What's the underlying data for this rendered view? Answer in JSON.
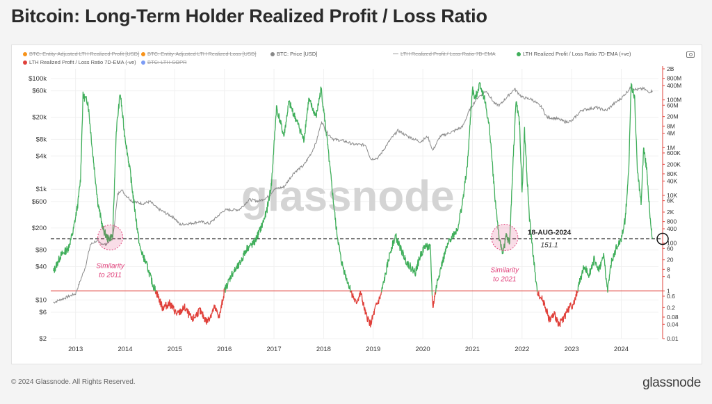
{
  "title": "Bitcoin: Long-Term Holder Realized Profit / Loss Ratio",
  "legend": [
    {
      "label": "BTC: Entity-Adjusted LTH Realized Profit [USD]",
      "color": "#f7931a",
      "struck": true
    },
    {
      "label": "BTC: Entity-Adjusted LTH Realized Loss [USD]",
      "color": "#f7931a",
      "struck": true
    },
    {
      "label": "BTC: Price [USD]",
      "color": "#888888",
      "struck": false
    },
    {
      "label": "LTH Realized Profit / Loss Ratio 7D-EMA",
      "color": "#999999",
      "struck": true
    },
    {
      "label": "LTH Realized Profit / Loss Ratio 7D-EMA (+ve)",
      "color": "#3fae5a",
      "struck": false
    },
    {
      "label": "LTH Realized Profit / Loss Ratio 7D-EMA (-ve)",
      "color": "#e0403a",
      "struck": false
    },
    {
      "label": "BTC: LTH-SOPR",
      "color": "#7c9cf5",
      "struck": true
    }
  ],
  "watermark": "glassnode",
  "annotations": {
    "sim2011": "Similarity\nto 2011",
    "sim2021": "Similarity\nto 2021",
    "date": "18-AUG-2024",
    "value": "151.1"
  },
  "colors": {
    "price": "#8a8a8a",
    "positive": "#3fae5a",
    "negative": "#e0403a",
    "accent": "#e0407a"
  },
  "footer": {
    "copyright": "© 2024 Glassnode. All Rights Reserved.",
    "brand": "glassnode"
  },
  "chart_data": {
    "type": "line",
    "title": "Bitcoin: Long-Term Holder Realized Profit / Loss Ratio",
    "x_ticks": [
      "2013",
      "2014",
      "2015",
      "2016",
      "2017",
      "2018",
      "2019",
      "2020",
      "2021",
      "2022",
      "2023",
      "2024"
    ],
    "y_left_ticks": [
      "$100k",
      "$60k",
      "$20k",
      "$8k",
      "$4k",
      "$1k",
      "$600",
      "$200",
      "$80",
      "$40",
      "$10",
      "$6",
      "$2"
    ],
    "y_left_values": [
      100000,
      60000,
      20000,
      8000,
      4000,
      1000,
      600,
      200,
      80,
      40,
      10,
      6,
      2
    ],
    "y_left_range": [
      2,
      150000
    ],
    "y_right_ticks": [
      "2B",
      "800M",
      "400M",
      "100M",
      "60M",
      "20M",
      "8M",
      "4M",
      "1M",
      "600K",
      "200K",
      "80K",
      "40K",
      "10K",
      "6K",
      "2K",
      "800",
      "400",
      "100",
      "60",
      "20",
      "8",
      "4",
      "1",
      "0.6",
      "0.2",
      "0.08",
      "0.04",
      "0.01"
    ],
    "y_right_values": [
      2000000000,
      800000000,
      400000000,
      100000000,
      60000000,
      20000000,
      8000000,
      4000000,
      1000000,
      600000,
      200000,
      80000,
      40000,
      10000,
      6000,
      2000,
      800,
      400,
      100,
      60,
      20,
      8,
      4,
      1,
      0.6,
      0.2,
      0.08,
      0.04,
      0.01
    ],
    "y_right_range": [
      0.01,
      2000000000
    ],
    "reference_lines": [
      {
        "name": "ratio-1-baseline",
        "value": 1,
        "axis": "right",
        "color": "#e0403a"
      },
      {
        "name": "aug-2024-level",
        "value": 151.1,
        "axis": "right",
        "style": "dashed"
      }
    ],
    "series": [
      {
        "name": "BTC: Price [USD]",
        "axis": "left",
        "color": "#8a8a8a",
        "points": [
          [
            2012.55,
            9
          ],
          [
            2012.8,
            11
          ],
          [
            2013.0,
            13
          ],
          [
            2013.2,
            40
          ],
          [
            2013.3,
            100
          ],
          [
            2013.4,
            115
          ],
          [
            2013.6,
            100
          ],
          [
            2013.75,
            130
          ],
          [
            2013.85,
            800
          ],
          [
            2013.92,
            1000
          ],
          [
            2014.0,
            800
          ],
          [
            2014.15,
            600
          ],
          [
            2014.35,
            550
          ],
          [
            2014.5,
            600
          ],
          [
            2014.65,
            450
          ],
          [
            2014.8,
            380
          ],
          [
            2015.0,
            300
          ],
          [
            2015.1,
            230
          ],
          [
            2015.3,
            240
          ],
          [
            2015.5,
            260
          ],
          [
            2015.7,
            240
          ],
          [
            2015.9,
            350
          ],
          [
            2016.0,
            420
          ],
          [
            2016.3,
            430
          ],
          [
            2016.5,
            650
          ],
          [
            2016.7,
            610
          ],
          [
            2016.9,
            750
          ],
          [
            2017.0,
            1000
          ],
          [
            2017.2,
            1100
          ],
          [
            2017.4,
            2000
          ],
          [
            2017.6,
            2700
          ],
          [
            2017.75,
            4500
          ],
          [
            2017.85,
            7000
          ],
          [
            2017.96,
            17000
          ],
          [
            2018.05,
            11000
          ],
          [
            2018.2,
            8000
          ],
          [
            2018.4,
            7500
          ],
          [
            2018.6,
            6500
          ],
          [
            2018.85,
            6300
          ],
          [
            2018.95,
            3500
          ],
          [
            2019.1,
            3700
          ],
          [
            2019.35,
            8000
          ],
          [
            2019.5,
            11500
          ],
          [
            2019.7,
            9000
          ],
          [
            2019.95,
            7200
          ],
          [
            2020.1,
            9000
          ],
          [
            2020.2,
            5000
          ],
          [
            2020.35,
            9000
          ],
          [
            2020.6,
            11000
          ],
          [
            2020.8,
            13500
          ],
          [
            2020.95,
            28000
          ],
          [
            2021.1,
            45000
          ],
          [
            2021.28,
            60000
          ],
          [
            2021.45,
            35000
          ],
          [
            2021.55,
            33000
          ],
          [
            2021.7,
            47000
          ],
          [
            2021.85,
            65000
          ],
          [
            2022.0,
            46000
          ],
          [
            2022.2,
            42000
          ],
          [
            2022.4,
            30000
          ],
          [
            2022.5,
            20000
          ],
          [
            2022.7,
            19000
          ],
          [
            2022.87,
            16500
          ],
          [
            2023.0,
            17000
          ],
          [
            2023.2,
            27000
          ],
          [
            2023.5,
            30000
          ],
          [
            2023.7,
            26500
          ],
          [
            2023.85,
            35000
          ],
          [
            2024.0,
            44000
          ],
          [
            2024.2,
            70000
          ],
          [
            2024.3,
            63000
          ],
          [
            2024.45,
            66000
          ],
          [
            2024.55,
            57000
          ],
          [
            2024.63,
            60000
          ]
        ]
      },
      {
        "name": "LTH Realized Profit / Loss Ratio 7D-EMA",
        "axis": "right",
        "color_positive": "#3fae5a",
        "color_negative": "#e0403a",
        "points": [
          [
            2012.55,
            6
          ],
          [
            2012.7,
            30
          ],
          [
            2012.85,
            60
          ],
          [
            2012.95,
            300
          ],
          [
            2013.05,
            5000
          ],
          [
            2013.1,
            50000
          ],
          [
            2013.15,
            150000000
          ],
          [
            2013.25,
            80000000
          ],
          [
            2013.35,
            500000
          ],
          [
            2013.45,
            5000
          ],
          [
            2013.55,
            400
          ],
          [
            2013.65,
            150
          ],
          [
            2013.75,
            200
          ],
          [
            2013.82,
            5000000
          ],
          [
            2013.9,
            200000000
          ],
          [
            2013.98,
            5000000
          ],
          [
            2014.1,
            100000
          ],
          [
            2014.2,
            2000
          ],
          [
            2014.3,
            60
          ],
          [
            2014.45,
            10
          ],
          [
            2014.55,
            2
          ],
          [
            2014.62,
            1
          ],
          [
            2014.75,
            0.2
          ],
          [
            2014.9,
            0.3
          ],
          [
            2015.05,
            0.1
          ],
          [
            2015.2,
            0.2
          ],
          [
            2015.35,
            0.06
          ],
          [
            2015.5,
            0.15
          ],
          [
            2015.65,
            0.05
          ],
          [
            2015.8,
            0.2
          ],
          [
            2015.9,
            0.08
          ],
          [
            2016.0,
            1
          ],
          [
            2016.15,
            5
          ],
          [
            2016.3,
            12
          ],
          [
            2016.45,
            60
          ],
          [
            2016.6,
            100
          ],
          [
            2016.75,
            500
          ],
          [
            2016.85,
            2000
          ],
          [
            2016.95,
            30000
          ],
          [
            2017.05,
            50000000
          ],
          [
            2017.2,
            3000000
          ],
          [
            2017.3,
            80000000
          ],
          [
            2017.5,
            8000000
          ],
          [
            2017.6,
            2000000
          ],
          [
            2017.7,
            100000000
          ],
          [
            2017.85,
            20000000
          ],
          [
            2017.95,
            300000000
          ],
          [
            2018.05,
            5000000
          ],
          [
            2018.15,
            50000
          ],
          [
            2018.25,
            500
          ],
          [
            2018.35,
            20
          ],
          [
            2018.45,
            4
          ],
          [
            2018.55,
            1
          ],
          [
            2018.65,
            0.3
          ],
          [
            2018.75,
            0.8
          ],
          [
            2018.85,
            0.1
          ],
          [
            2018.95,
            0.04
          ],
          [
            2019.05,
            0.2
          ],
          [
            2019.15,
            0.6
          ],
          [
            2019.25,
            5
          ],
          [
            2019.35,
            50
          ],
          [
            2019.45,
            200
          ],
          [
            2019.55,
            60
          ],
          [
            2019.65,
            20
          ],
          [
            2019.75,
            10
          ],
          [
            2019.85,
            6
          ],
          [
            2019.95,
            30
          ],
          [
            2020.05,
            80
          ],
          [
            2020.15,
            60
          ],
          [
            2020.2,
            0.2
          ],
          [
            2020.3,
            3
          ],
          [
            2020.45,
            40
          ],
          [
            2020.55,
            150
          ],
          [
            2020.7,
            400
          ],
          [
            2020.8,
            5000
          ],
          [
            2020.9,
            200000
          ],
          [
            2021.0,
            300000000
          ],
          [
            2021.05,
            100000000
          ],
          [
            2021.15,
            500000000
          ],
          [
            2021.25,
            100000000
          ],
          [
            2021.35,
            5000000
          ],
          [
            2021.45,
            10000
          ],
          [
            2021.55,
            100
          ],
          [
            2021.62,
            40
          ],
          [
            2021.68,
            200
          ],
          [
            2021.75,
            100
          ],
          [
            2021.82,
            300000
          ],
          [
            2021.88,
            100000000
          ],
          [
            2021.95,
            10000000
          ],
          [
            2022.0,
            10000
          ],
          [
            2022.05,
            5000000
          ],
          [
            2022.15,
            1000
          ],
          [
            2022.3,
            1
          ],
          [
            2022.45,
            0.3
          ],
          [
            2022.55,
            0.06
          ],
          [
            2022.65,
            0.1
          ],
          [
            2022.75,
            0.04
          ],
          [
            2022.85,
            0.08
          ],
          [
            2022.95,
            0.2
          ],
          [
            2023.05,
            0.3
          ],
          [
            2023.15,
            2
          ],
          [
            2023.25,
            10
          ],
          [
            2023.35,
            5
          ],
          [
            2023.45,
            20
          ],
          [
            2023.55,
            8
          ],
          [
            2023.65,
            30
          ],
          [
            2023.72,
            1
          ],
          [
            2023.8,
            15
          ],
          [
            2023.9,
            60
          ],
          [
            2024.0,
            150
          ],
          [
            2024.08,
            1000
          ],
          [
            2024.15,
            100000
          ],
          [
            2024.2,
            500000000
          ],
          [
            2024.27,
            100000000
          ],
          [
            2024.33,
            80000
          ],
          [
            2024.4,
            5000
          ],
          [
            2024.45,
            1000000
          ],
          [
            2024.52,
            100000
          ],
          [
            2024.58,
            1000
          ],
          [
            2024.63,
            151.1
          ]
        ]
      }
    ]
  }
}
